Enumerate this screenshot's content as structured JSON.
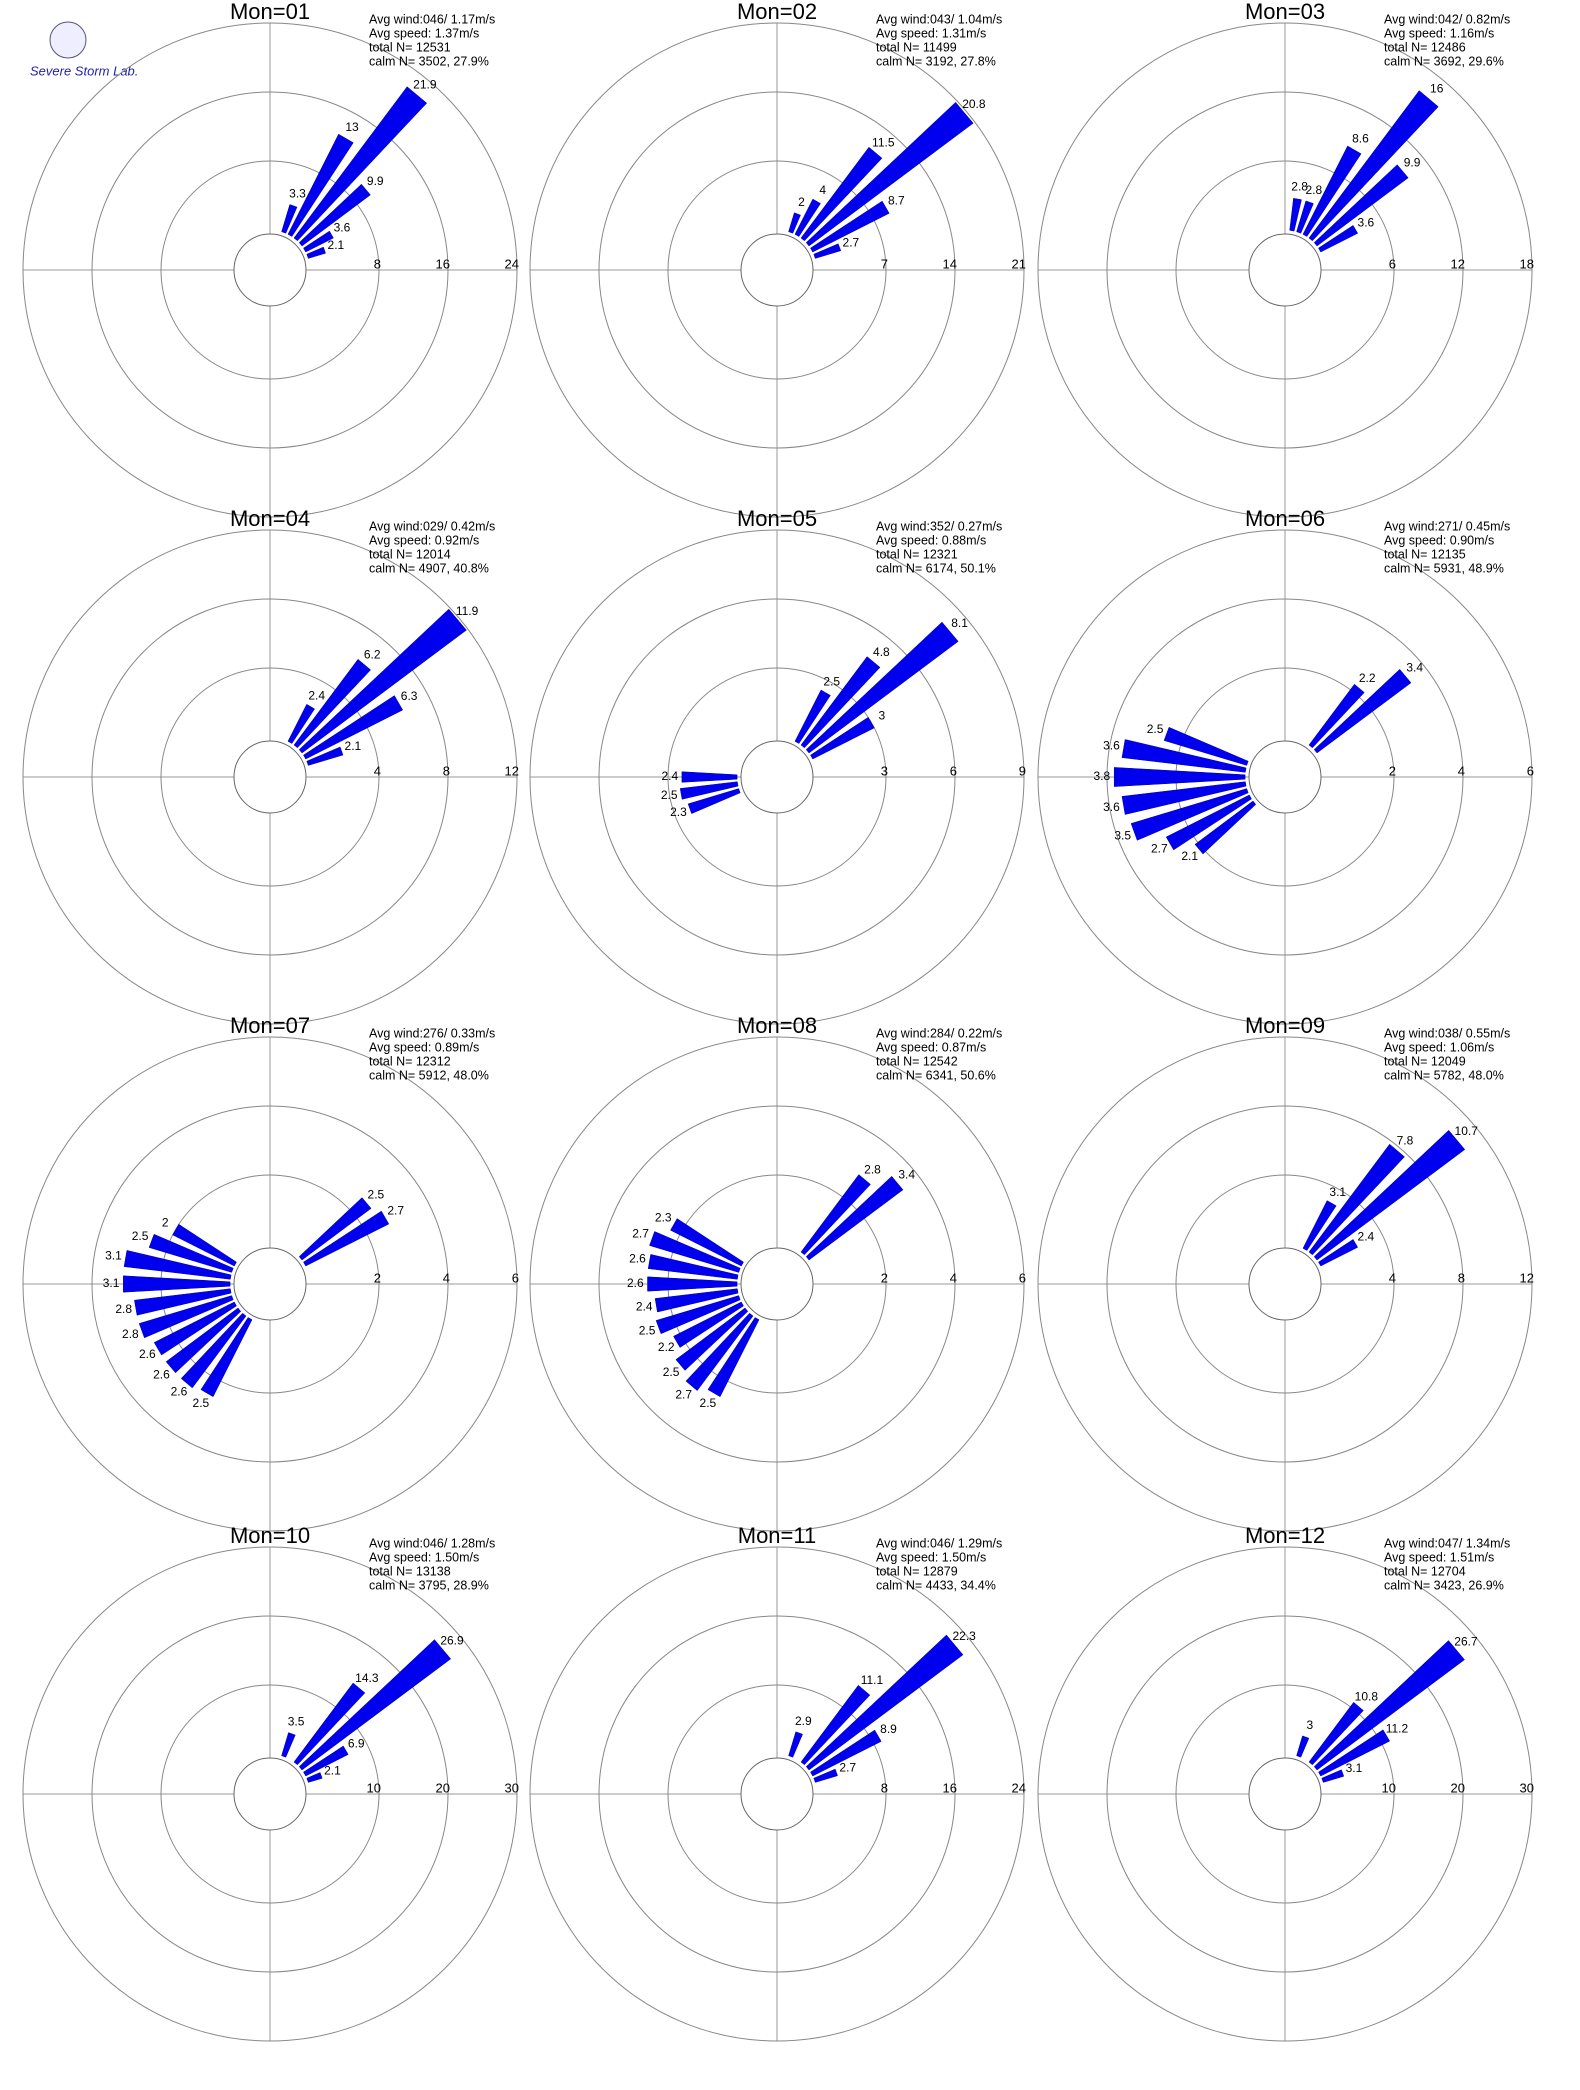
{
  "logo": "Severe Storm Lab.",
  "chart_data": [
    {
      "type": "windrose",
      "title": "Mon=01",
      "stats": [
        "Avg wind:046/ 1.17m/s",
        "Avg speed: 1.37m/s",
        "total N=      12531",
        "calm N=   3502,  27.9%"
      ],
      "directions": [
        20,
        30,
        40,
        50,
        60,
        70
      ],
      "values": [
        3.3,
        13.0,
        21.9,
        9.9,
        3.6,
        2.1
      ],
      "rlim": [
        0,
        24
      ],
      "rticks": [
        8,
        16,
        24
      ],
      "color": "#0000ee"
    },
    {
      "type": "windrose",
      "title": "Mon=02",
      "stats": [
        "Avg wind:043/ 1.04m/s",
        "Avg speed: 1.31m/s",
        "total N=      11499",
        "calm N=   3192,  27.8%"
      ],
      "directions": [
        20,
        30,
        40,
        50,
        60,
        70
      ],
      "values": [
        2.0,
        4.0,
        11.5,
        20.8,
        8.7,
        2.7
      ],
      "rlim": [
        0,
        21
      ],
      "rticks": [
        7,
        14,
        21
      ],
      "color": "#0000ee"
    },
    {
      "type": "windrose",
      "title": "Mon=03",
      "stats": [
        "Avg wind:042/ 0.82m/s",
        "Avg speed: 1.16m/s",
        "total N=      12486",
        "calm N=   3692,  29.6%"
      ],
      "directions": [
        10,
        20,
        30,
        40,
        50,
        60
      ],
      "values": [
        2.8,
        2.8,
        8.6,
        16.0,
        9.9,
        3.6
      ],
      "rlim": [
        0,
        18
      ],
      "rticks": [
        6,
        12,
        18
      ],
      "color": "#0000ee"
    },
    {
      "type": "windrose",
      "title": "Mon=04",
      "stats": [
        "Avg wind:029/ 0.42m/s",
        "Avg speed: 0.92m/s",
        "total N=      12014",
        "calm N=   4907,  40.8%"
      ],
      "directions": [
        30,
        40,
        50,
        60,
        70
      ],
      "values": [
        2.4,
        6.2,
        11.9,
        6.3,
        2.1
      ],
      "rlim": [
        0,
        12
      ],
      "rticks": [
        4,
        8,
        12
      ],
      "color": "#0000ee"
    },
    {
      "type": "windrose",
      "title": "Mon=05",
      "stats": [
        "Avg wind:352/ 0.27m/s",
        "Avg speed: 0.88m/s",
        "total N=      12321",
        "calm N=   6174,  50.1%"
      ],
      "directions": [
        30,
        40,
        50,
        60,
        250,
        260,
        270
      ],
      "values": [
        2.5,
        4.8,
        8.1,
        3.0,
        2.3,
        2.5,
        2.4
      ],
      "rlim": [
        0,
        9
      ],
      "rticks": [
        3,
        6,
        9
      ],
      "color": "#0000ee"
    },
    {
      "type": "windrose",
      "title": "Mon=06",
      "stats": [
        "Avg wind:271/ 0.45m/s",
        "Avg speed: 0.90m/s",
        "total N=      12135",
        "calm N=   5931,  48.9%"
      ],
      "directions": [
        40,
        50,
        290,
        280,
        270,
        260,
        250,
        240,
        230
      ],
      "values": [
        2.2,
        3.4,
        2.5,
        3.6,
        3.8,
        3.6,
        3.5,
        2.7,
        2.1
      ],
      "rlim": [
        0,
        6
      ],
      "rticks": [
        2,
        4,
        6
      ],
      "color": "#0000ee"
    },
    {
      "type": "windrose",
      "title": "Mon=07",
      "stats": [
        "Avg wind:276/ 0.33m/s",
        "Avg speed: 0.89m/s",
        "total N=      12312",
        "calm N=   5912,  48.0%"
      ],
      "directions": [
        50,
        60,
        300,
        290,
        280,
        270,
        260,
        250,
        240,
        230,
        220,
        210
      ],
      "values": [
        2.5,
        2.7,
        2.0,
        2.5,
        3.1,
        3.1,
        2.8,
        2.8,
        2.6,
        2.6,
        2.6,
        2.5
      ],
      "rlim": [
        0,
        6
      ],
      "rticks": [
        2,
        4,
        6
      ],
      "color": "#0000ee"
    },
    {
      "type": "windrose",
      "title": "Mon=08",
      "stats": [
        "Avg wind:284/ 0.22m/s",
        "Avg speed: 0.87m/s",
        "total N=      12542",
        "calm N=   6341,  50.6%"
      ],
      "directions": [
        40,
        50,
        300,
        290,
        280,
        270,
        260,
        250,
        240,
        230,
        220,
        210
      ],
      "values": [
        2.8,
        3.4,
        2.3,
        2.7,
        2.6,
        2.6,
        2.4,
        2.5,
        2.2,
        2.5,
        2.7,
        2.5
      ],
      "rlim": [
        0,
        6
      ],
      "rticks": [
        2,
        4,
        6
      ],
      "color": "#0000ee"
    },
    {
      "type": "windrose",
      "title": "Mon=09",
      "stats": [
        "Avg wind:038/ 0.55m/s",
        "Avg speed: 1.06m/s",
        "total N=      12049",
        "calm N=   5782,  48.0%"
      ],
      "directions": [
        30,
        40,
        50,
        60
      ],
      "values": [
        3.1,
        7.8,
        10.7,
        2.4
      ],
      "rlim": [
        0,
        12
      ],
      "rticks": [
        4,
        8,
        12
      ],
      "color": "#0000ee"
    },
    {
      "type": "windrose",
      "title": "Mon=10",
      "stats": [
        "Avg wind:046/ 1.28m/s",
        "Avg speed: 1.50m/s",
        "total N=      13138",
        "calm N=   3795,  28.9%"
      ],
      "directions": [
        20,
        40,
        50,
        60,
        70
      ],
      "values": [
        3.5,
        14.3,
        26.9,
        6.9,
        2.1
      ],
      "rlim": [
        0,
        30
      ],
      "rticks": [
        10,
        20,
        30
      ],
      "color": "#0000ee"
    },
    {
      "type": "windrose",
      "title": "Mon=11",
      "stats": [
        "Avg wind:046/ 1.29m/s",
        "Avg speed: 1.50m/s",
        "total N=      12879",
        "calm N=   4433,  34.4%"
      ],
      "directions": [
        20,
        40,
        50,
        60,
        70
      ],
      "values": [
        2.9,
        11.1,
        22.3,
        8.9,
        2.7
      ],
      "rlim": [
        0,
        24
      ],
      "rticks": [
        8,
        16,
        24
      ],
      "color": "#0000ee"
    },
    {
      "type": "windrose",
      "title": "Mon=12",
      "stats": [
        "Avg wind:047/ 1.34m/s",
        "Avg speed: 1.51m/s",
        "total N=      12704",
        "calm N=   3423,  26.9%"
      ],
      "directions": [
        20,
        40,
        50,
        60,
        70
      ],
      "values": [
        3.0,
        10.8,
        26.7,
        11.2,
        3.1
      ],
      "rlim": [
        0,
        30
      ],
      "rticks": [
        10,
        20,
        30
      ],
      "color": "#0000ee"
    }
  ]
}
